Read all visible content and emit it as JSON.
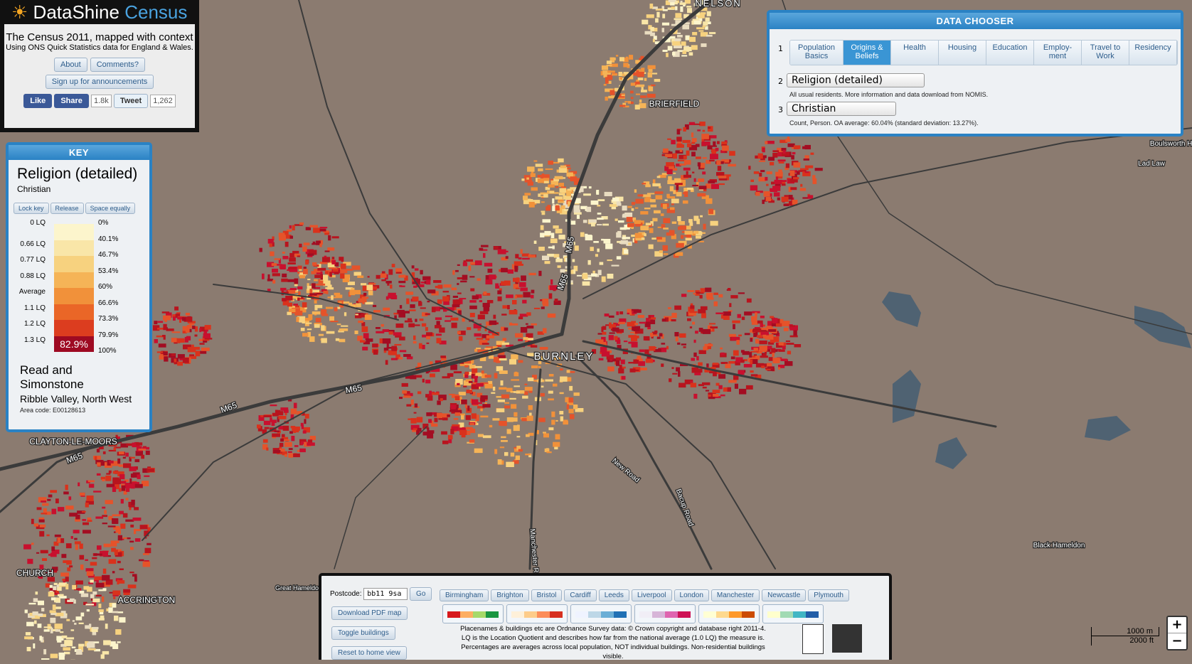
{
  "header": {
    "brand": "DataShine",
    "brand_accent": "Census",
    "tagline": "The Census 2011, mapped with context",
    "subtitle": "Using ONS Quick Statistics data for England & Wales.",
    "buttons": [
      "About",
      "Comments?"
    ],
    "signup": "Sign up for announcements",
    "like": "Like",
    "share": "Share",
    "share_count": "1.8k",
    "tweet": "Tweet",
    "tweet_count": "1,262"
  },
  "key": {
    "heading": "KEY",
    "title": "Religion (detailed)",
    "subtitle": "Christian",
    "buttons": [
      "Lock key",
      "Release",
      "Space equally"
    ],
    "lq_labels": [
      "0 LQ",
      "0.66 LQ",
      "0.77 LQ",
      "0.88 LQ",
      "Average",
      "1.1 LQ",
      "1.2 LQ",
      "1.3 LQ"
    ],
    "pct_labels": [
      "0%",
      "40.1%",
      "46.7%",
      "53.4%",
      "60%",
      "66.6%",
      "73.3%",
      "79.9%",
      "100%"
    ],
    "highlight": "82.9%",
    "area_name": "Read and Simonstone",
    "area_region": "Ribble Valley, North West",
    "area_code": "Area code: E00128613"
  },
  "data_chooser": {
    "heading": "DATA CHOOSER",
    "steps": [
      "1",
      "2",
      "3"
    ],
    "tabs": [
      "Population Basics",
      "Origins & Beliefs",
      "Health",
      "Housing",
      "Education",
      "Employ- ment",
      "Travel to Work",
      "Residency"
    ],
    "dataset": "Religion (detailed)",
    "dataset_note": "All usual residents. More information and data download from NOMIS.",
    "variable": "Christian",
    "variable_note": "Count, Person. OA average: 60.04% (standard deviation: 13.27%)."
  },
  "map_labels": [
    "NELSON",
    "BRIERFIELD",
    "BURNLEY",
    "CLAYTON-LE-MOORS",
    "CHURCH",
    "ACCRINGTON",
    "M65",
    "M65",
    "M65",
    "M65",
    "M65",
    "New Road",
    "Bacup Road",
    "Manchester R",
    "Lad Law",
    "Black Hameldon",
    "Boulsworth Hill",
    "Great Hameldon"
  ],
  "bottom": {
    "postcode_label": "Postcode:",
    "postcode": "bb11 9sa",
    "go": "Go",
    "buttons": [
      "Download PDF map",
      "Toggle buildings",
      "Reset to home view"
    ],
    "cities": [
      "Birmingham",
      "Brighton",
      "Bristol",
      "Cardiff",
      "Leeds",
      "Liverpool",
      "London",
      "Manchester",
      "Newcastle",
      "Plymouth"
    ],
    "attribution": [
      "Placenames & buildings etc are Ordnance Survey data: © Crown copyright and database right 2011-4.",
      "LQ is the Location Quotient and describes how far from the national average (1.0 LQ) the measure is.",
      "Percentages are averages across local population, NOT individual buildings. Non-residential buildings visible."
    ]
  },
  "scale": {
    "metric": "1000 m",
    "imperial": "2000 ft"
  },
  "zoom": {
    "in": "+",
    "out": "−"
  }
}
